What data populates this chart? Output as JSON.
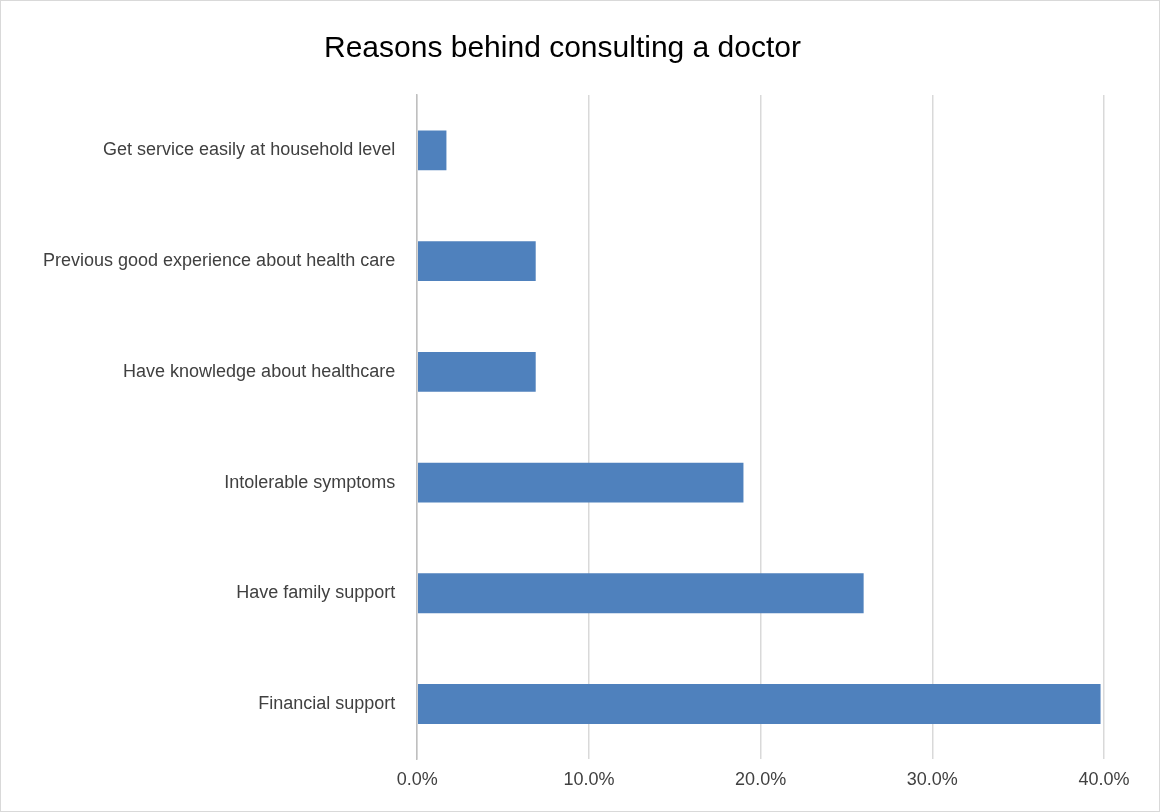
{
  "chart_data": {
    "type": "bar",
    "orientation": "horizontal",
    "title": "Reasons behind consulting a doctor",
    "categories": [
      "Get service easily at household level",
      "Previous good experience about health care",
      "Have knowledge about healthcare",
      "Intolerable symptoms",
      "Have family support",
      "Financial support"
    ],
    "values": [
      1.7,
      6.9,
      6.9,
      19.0,
      26.0,
      39.8
    ],
    "color": "#4f81bd",
    "xlim": [
      0,
      40
    ],
    "xticks": [
      {
        "value": 0,
        "label": "0.0%"
      },
      {
        "value": 10,
        "label": "10.0%"
      },
      {
        "value": 20,
        "label": "20.0%"
      },
      {
        "value": 30,
        "label": "30.0%"
      },
      {
        "value": 40,
        "label": "40.0%"
      }
    ],
    "grid": "x",
    "legend": false
  }
}
